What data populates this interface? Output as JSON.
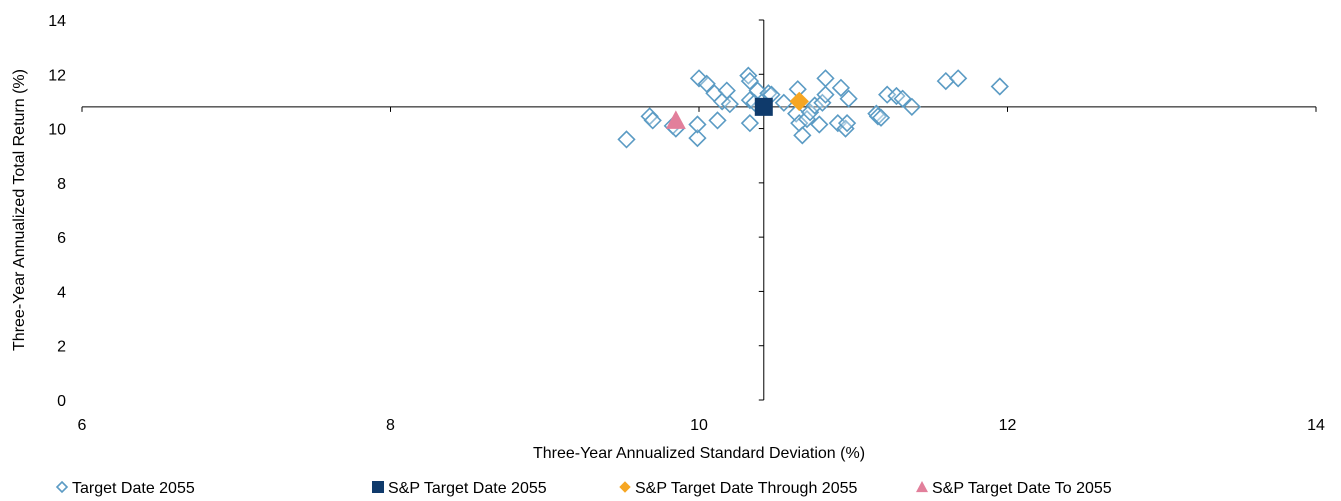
{
  "chart_data": {
    "type": "scatter",
    "title": "",
    "xlabel": "Three-Year Annualized Standard Deviation (%)",
    "ylabel": "Three-Year Annualized Total Return (%)",
    "xlim": [
      6,
      14
    ],
    "ylim": [
      0,
      14
    ],
    "x_ticks": [
      "6",
      "8",
      "10",
      "12",
      "14"
    ],
    "y_ticks": [
      "0",
      "2",
      "4",
      "6",
      "8",
      "10",
      "12",
      "14"
    ],
    "crosshair": {
      "x": 10.42,
      "y": 10.8
    },
    "grid": false,
    "legend_position": "bottom",
    "series": [
      {
        "name": "Target Date 2055",
        "marker": "diamond-open",
        "color": "#5b9bc4",
        "points": [
          [
            9.53,
            9.6
          ],
          [
            9.68,
            10.45
          ],
          [
            9.7,
            10.3
          ],
          [
            9.83,
            10.1
          ],
          [
            9.85,
            10.0
          ],
          [
            9.99,
            9.65
          ],
          [
            9.99,
            10.15
          ],
          [
            10.0,
            11.85
          ],
          [
            10.05,
            11.65
          ],
          [
            10.1,
            11.3
          ],
          [
            10.12,
            10.3
          ],
          [
            10.15,
            11.0
          ],
          [
            10.18,
            11.4
          ],
          [
            10.2,
            10.9
          ],
          [
            10.32,
            11.95
          ],
          [
            10.33,
            11.75
          ],
          [
            10.33,
            11.05
          ],
          [
            10.33,
            10.2
          ],
          [
            10.36,
            10.95
          ],
          [
            10.38,
            11.4
          ],
          [
            10.45,
            11.3
          ],
          [
            10.47,
            11.25
          ],
          [
            10.55,
            10.95
          ],
          [
            10.63,
            10.55
          ],
          [
            10.64,
            11.45
          ],
          [
            10.65,
            10.2
          ],
          [
            10.67,
            9.75
          ],
          [
            10.7,
            10.35
          ],
          [
            10.72,
            10.6
          ],
          [
            10.75,
            10.85
          ],
          [
            10.78,
            10.15
          ],
          [
            10.8,
            10.95
          ],
          [
            10.82,
            11.85
          ],
          [
            10.82,
            11.25
          ],
          [
            10.9,
            10.2
          ],
          [
            10.92,
            11.5
          ],
          [
            10.95,
            10.0
          ],
          [
            10.96,
            10.2
          ],
          [
            10.97,
            11.1
          ],
          [
            11.15,
            10.55
          ],
          [
            11.16,
            10.45
          ],
          [
            11.18,
            10.4
          ],
          [
            11.22,
            11.25
          ],
          [
            11.28,
            11.2
          ],
          [
            11.32,
            11.1
          ],
          [
            11.38,
            10.8
          ],
          [
            11.6,
            11.75
          ],
          [
            11.68,
            11.85
          ],
          [
            11.95,
            11.55
          ]
        ]
      },
      {
        "name": "S&P Target Date 2055",
        "marker": "square",
        "color": "#0f3a6b",
        "points": [
          [
            10.42,
            10.8
          ]
        ]
      },
      {
        "name": "S&P Target Date Through 2055",
        "marker": "diamond",
        "color": "#f6a623",
        "points": [
          [
            10.65,
            11.0
          ]
        ]
      },
      {
        "name": "S&P Target Date To 2055",
        "marker": "triangle",
        "color": "#e27f9b",
        "points": [
          [
            9.85,
            10.3
          ]
        ]
      }
    ]
  }
}
